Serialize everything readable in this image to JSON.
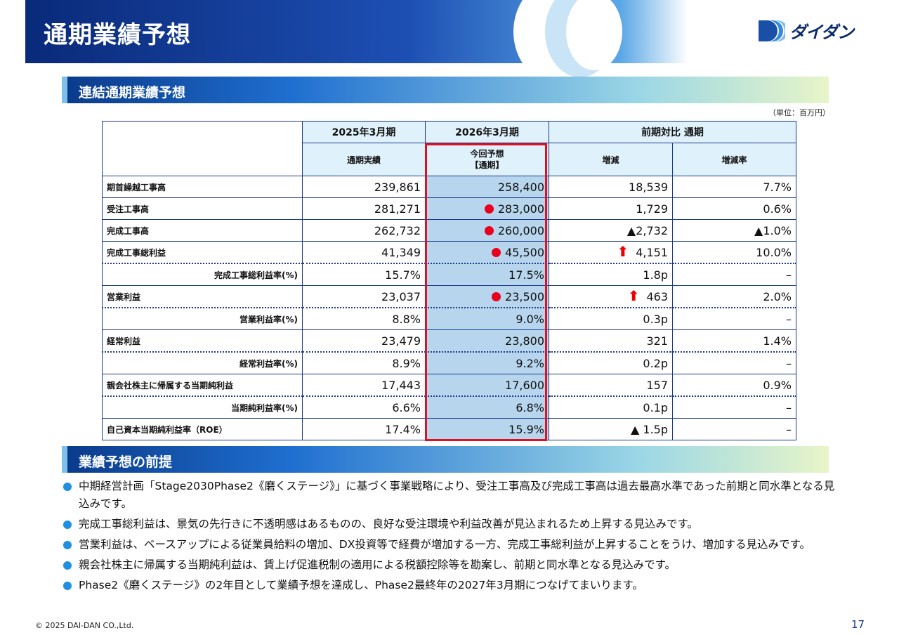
{
  "header": {
    "title": "通期業績予想",
    "logo_text": "ダイダン"
  },
  "sections": {
    "forecast_title": "連結通期業績予想",
    "premise_title": "業績予想の前提"
  },
  "unit_note": "（単位：百万円）",
  "table": {
    "col_2025": "2025年3月期",
    "col_2026": "2026年3月期",
    "col_compare": "前期対比 通期",
    "sub_actual": "通期実績",
    "sub_forecast_line1": "今回予想",
    "sub_forecast_line2": "【通期】",
    "sub_change": "増減",
    "sub_rate": "増減率",
    "rows": [
      {
        "label": "期首繰越工事高",
        "prev": "239,861",
        "fcst": "258,400",
        "chg": "18,539",
        "rate": "7.7%"
      },
      {
        "label": "受注工事高",
        "prev": "281,271",
        "fcst": "283,000",
        "chg": "1,729",
        "rate": "0.6%"
      },
      {
        "label": "完成工事高",
        "prev": "262,732",
        "fcst": "260,000",
        "chg": "▲2,732",
        "rate": "▲1.0%"
      },
      {
        "label": "完成工事総利益",
        "prev": "41,349",
        "fcst": "45,500",
        "chg": "4,151",
        "rate": "10.0%"
      },
      {
        "label": "完成工事総利益率(%)",
        "prev": "15.7%",
        "fcst": "17.5%",
        "chg": "1.8p",
        "rate": "–"
      },
      {
        "label": "営業利益",
        "prev": "23,037",
        "fcst": "23,500",
        "chg": "463",
        "rate": "2.0%"
      },
      {
        "label": "営業利益率(%)",
        "prev": "8.8%",
        "fcst": "9.0%",
        "chg": "0.3p",
        "rate": "–"
      },
      {
        "label": "経常利益",
        "prev": "23,479",
        "fcst": "23,800",
        "chg": "321",
        "rate": "1.4%"
      },
      {
        "label": "経常利益率(%)",
        "prev": "8.9%",
        "fcst": "9.2%",
        "chg": "0.2p",
        "rate": "–"
      },
      {
        "label": "親会社株主に帰属する当期純利益",
        "prev": "17,443",
        "fcst": "17,600",
        "chg": "157",
        "rate": "0.9%"
      },
      {
        "label": "当期純利益率(%)",
        "prev": "6.6%",
        "fcst": "6.8%",
        "chg": "0.1p",
        "rate": "–"
      },
      {
        "label": "自己資本当期純利益率（ROE）",
        "prev": "17.4%",
        "fcst": "15.9%",
        "chg": "▲ 1.5p",
        "rate": "–"
      }
    ]
  },
  "bullets": [
    "中期経営計画「Stage2030Phase2《磨くステージ》」に基づく事業戦略により、受注工事高及び完成工事高は過去最高水準であった前期と同水準となる見込みです。",
    "完成工事総利益は、景気の先行きに不透明感はあるものの、良好な受注環境や利益改善が見込まれるため上昇する見込みです。",
    "営業利益は、ベースアップによる従業員給料の増加、DX投資等で経費が増加する一方、完成工事総利益が上昇することをうけ、増加する見込みです。",
    "親会社株主に帰属する当期純利益は、賃上げ促進税制の適用による税額控除等を勘案し、前期と同水準となる見込みです。",
    "Phase2《磨くステージ》の2年目として業績予想を達成し、Phase2最終年の2027年3月期につなげてまいります。"
  ],
  "footer": {
    "copyright": "© 2025 DAI-DAN CO.,Ltd.",
    "page_number": "17"
  },
  "colors": {
    "forecast_bg": "#b7d6ee",
    "highlight": "#e01020",
    "dot": "#e8001c",
    "accent": "#1f6fd0"
  }
}
